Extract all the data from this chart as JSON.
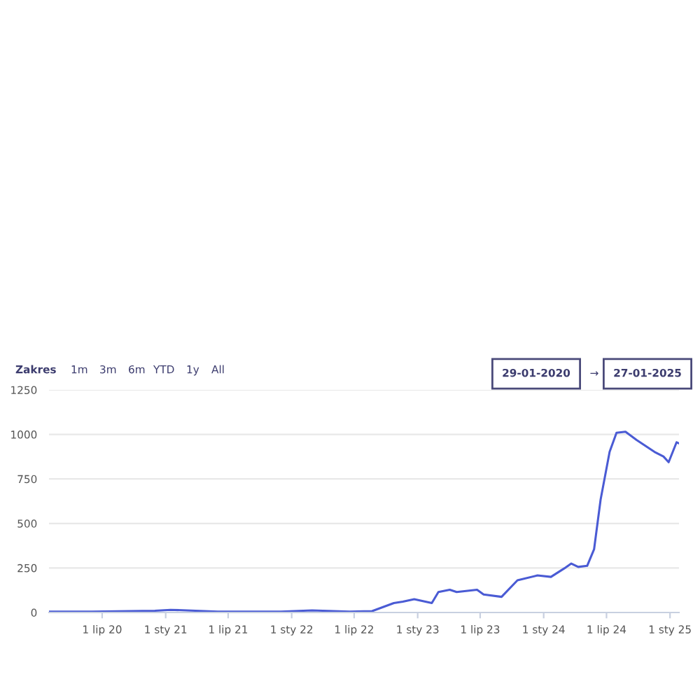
{
  "chart_data": {
    "type": "line",
    "annotations": [
      "Zakres",
      "1m",
      "3m",
      "6m",
      "YTD",
      "1y",
      "All",
      "29-01-2020",
      "→",
      "27-01-2025"
    ],
    "series": [
      {
        "color": "#4a5bd4",
        "x": [
          "2020-01-29",
          "2020-06-01",
          "2020-12-01",
          "2021-01-15",
          "2021-06-01",
          "2021-12-01",
          "2022-03-01",
          "2022-06-18",
          "2022-08-22",
          "2022-10-24",
          "2022-11-19",
          "2022-12-22",
          "2023-02-11",
          "2023-03-02",
          "2023-04-04",
          "2023-04-24",
          "2023-06-22",
          "2023-07-11",
          "2023-09-01",
          "2023-10-17",
          "2023-12-14",
          "2024-01-22",
          "2024-03-01",
          "2024-03-21",
          "2024-04-10",
          "2024-05-06",
          "2024-05-26",
          "2024-06-14",
          "2024-07-10",
          "2024-07-30",
          "2024-08-25",
          "2024-09-26",
          "2024-11-17",
          "2024-12-13",
          "2024-12-28",
          "2025-01-20",
          "2025-01-27"
        ],
        "values": [
          5,
          5,
          10,
          15,
          5,
          5,
          12,
          5,
          8,
          53,
          61,
          75,
          53,
          115,
          128,
          115,
          128,
          101,
          88,
          181,
          208,
          200,
          248,
          275,
          256,
          262,
          355,
          635,
          902,
          1009,
          1015,
          969,
          902,
          876,
          844,
          956,
          950
        ]
      }
    ],
    "xlim": [
      "2020-01-29",
      "2025-01-27"
    ],
    "xticks": [
      {
        "value": "2020-07-01",
        "label": "1 lip 20"
      },
      {
        "value": "2021-01-01",
        "label": "1 sty 21"
      },
      {
        "value": "2021-07-01",
        "label": "1 lip 21"
      },
      {
        "value": "2022-01-01",
        "label": "1 sty 22"
      },
      {
        "value": "2022-07-01",
        "label": "1 lip 22"
      },
      {
        "value": "2023-01-01",
        "label": "1 sty 23"
      },
      {
        "value": "2023-07-01",
        "label": "1 lip 23"
      },
      {
        "value": "2024-01-01",
        "label": "1 sty 24"
      },
      {
        "value": "2024-07-01",
        "label": "1 lip 24"
      },
      {
        "value": "2025-01-01",
        "label": "1 sty 25"
      }
    ],
    "ylim": [
      0,
      1250
    ],
    "yticks": [
      0,
      250,
      500,
      750,
      1000,
      1250
    ],
    "grid": "y",
    "legend": false,
    "marker": "none",
    "line_style": "solid"
  }
}
